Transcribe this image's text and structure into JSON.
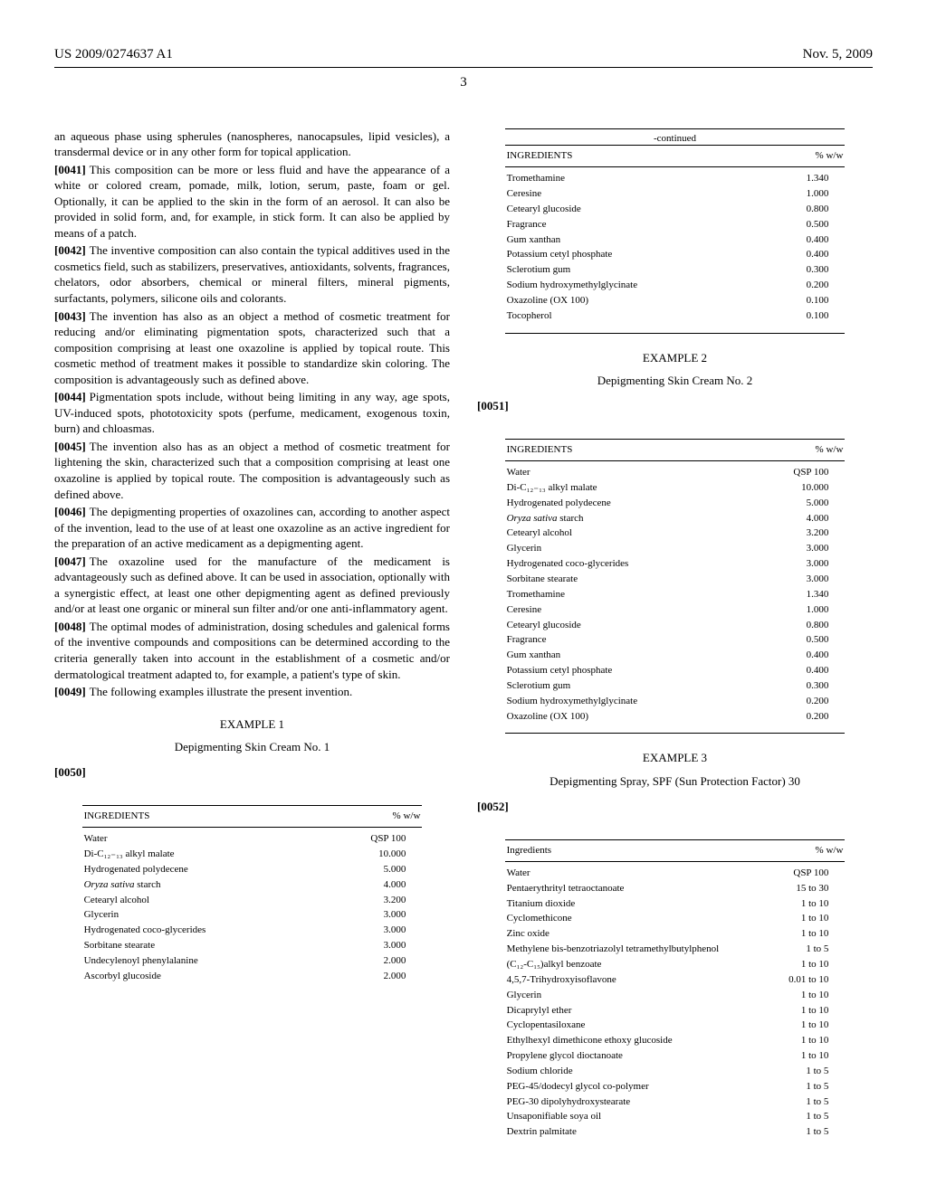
{
  "header": {
    "patent_number": "US 2009/0274637 A1",
    "date": "Nov. 5, 2009"
  },
  "page_number": "3",
  "left_column": {
    "para_intro": "an aqueous phase using spherules (nanospheres, nanocapsules, lipid vesicles), a transdermal device or in any other form for topical application.",
    "paragraphs": [
      {
        "num": "[0041]",
        "text": "This composition can be more or less fluid and have the appearance of a white or colored cream, pomade, milk, lotion, serum, paste, foam or gel. Optionally, it can be applied to the skin in the form of an aerosol. It can also be provided in solid form, and, for example, in stick form. It can also be applied by means of a patch."
      },
      {
        "num": "[0042]",
        "text": "The inventive composition can also contain the typical additives used in the cosmetics field, such as stabilizers, preservatives, antioxidants, solvents, fragrances, chelators, odor absorbers, chemical or mineral filters, mineral pigments, surfactants, polymers, silicone oils and colorants."
      },
      {
        "num": "[0043]",
        "text": "The invention has also as an object a method of cosmetic treatment for reducing and/or eliminating pigmentation spots, characterized such that a composition comprising at least one oxazoline is applied by topical route. This cosmetic method of treatment makes it possible to standardize skin coloring. The composition is advantageously such as defined above."
      },
      {
        "num": "[0044]",
        "text": "Pigmentation spots include, without being limiting in any way, age spots, UV-induced spots, phototoxicity spots (perfume, medicament, exogenous toxin, burn) and chloasmas."
      },
      {
        "num": "[0045]",
        "text": "The invention also has as an object a method of cosmetic treatment for lightening the skin, characterized such that a composition comprising at least one oxazoline is applied by topical route. The composition is advantageously such as defined above."
      },
      {
        "num": "[0046]",
        "text": "The depigmenting properties of oxazolines can, according to another aspect of the invention, lead to the use of at least one oxazoline as an active ingredient for the preparation of an active medicament as a depigmenting agent."
      },
      {
        "num": "[0047]",
        "text": "The oxazoline used for the manufacture of the medicament is advantageously such as defined above. It can be used in association, optionally with a synergistic effect, at least one other depigmenting agent as defined previously and/or at least one organic or mineral sun filter and/or one anti-inflammatory agent."
      },
      {
        "num": "[0048]",
        "text": "The optimal modes of administration, dosing schedules and galenical forms of the inventive compounds and compositions can be determined according to the criteria generally taken into account in the establishment of a cosmetic and/or dermatological treatment adapted to, for example, a patient's type of skin."
      },
      {
        "num": "[0049]",
        "text": "The following examples illustrate the present invention."
      }
    ],
    "example1": {
      "heading": "EXAMPLE 1",
      "subheading": "Depigmenting Skin Cream No. 1",
      "para_num": "[0050]",
      "headers": [
        "INGREDIENTS",
        "% w/w"
      ],
      "rows": [
        [
          "Water",
          "QSP 100"
        ],
        [
          "Di-C₁₂₋₁₃ alkyl malate",
          "10.000"
        ],
        [
          "Hydrogenated polydecene",
          "5.000"
        ],
        [
          "Oryza sativa starch",
          "4.000"
        ],
        [
          "Cetearyl alcohol",
          "3.200"
        ],
        [
          "Glycerin",
          "3.000"
        ],
        [
          "Hydrogenated coco-glycerides",
          "3.000"
        ],
        [
          "Sorbitane stearate",
          "3.000"
        ],
        [
          "Undecylenoyl phenylalanine",
          "2.000"
        ],
        [
          "Ascorbyl glucoside",
          "2.000"
        ]
      ]
    }
  },
  "right_column": {
    "continued_label": "-continued",
    "continued_headers": [
      "INGREDIENTS",
      "% w/w"
    ],
    "continued_rows": [
      [
        "Tromethamine",
        "1.340"
      ],
      [
        "Ceresine",
        "1.000"
      ],
      [
        "Cetearyl glucoside",
        "0.800"
      ],
      [
        "Fragrance",
        "0.500"
      ],
      [
        "Gum xanthan",
        "0.400"
      ],
      [
        "Potassium cetyl phosphate",
        "0.400"
      ],
      [
        "Sclerotium gum",
        "0.300"
      ],
      [
        "Sodium hydroxymethylglycinate",
        "0.200"
      ],
      [
        "Oxazoline (OX 100)",
        "0.100"
      ],
      [
        "Tocopherol",
        "0.100"
      ]
    ],
    "example2": {
      "heading": "EXAMPLE 2",
      "subheading": "Depigmenting Skin Cream No. 2",
      "para_num": "[0051]",
      "headers": [
        "INGREDIENTS",
        "% w/w"
      ],
      "rows": [
        [
          "Water",
          "QSP 100"
        ],
        [
          "Di-C₁₂₋₁₃ alkyl malate",
          "10.000"
        ],
        [
          "Hydrogenated polydecene",
          "5.000"
        ],
        [
          "Oryza sativa starch",
          "4.000"
        ],
        [
          "Cetearyl alcohol",
          "3.200"
        ],
        [
          "Glycerin",
          "3.000"
        ],
        [
          "Hydrogenated coco-glycerides",
          "3.000"
        ],
        [
          "Sorbitane stearate",
          "3.000"
        ],
        [
          "Tromethamine",
          "1.340"
        ],
        [
          "Ceresine",
          "1.000"
        ],
        [
          "Cetearyl glucoside",
          "0.800"
        ],
        [
          "Fragrance",
          "0.500"
        ],
        [
          "Gum xanthan",
          "0.400"
        ],
        [
          "Potassium cetyl phosphate",
          "0.400"
        ],
        [
          "Sclerotium gum",
          "0.300"
        ],
        [
          "Sodium hydroxymethylglycinate",
          "0.200"
        ],
        [
          "Oxazoline (OX 100)",
          "0.200"
        ]
      ]
    },
    "example3": {
      "heading": "EXAMPLE 3",
      "subheading": "Depigmenting Spray, SPF (Sun Protection Factor) 30",
      "para_num": "[0052]",
      "headers": [
        "Ingredients",
        "% w/w"
      ],
      "rows": [
        [
          "Water",
          "QSP 100"
        ],
        [
          "Pentaerythrityl tetraoctanoate",
          "15 to 30"
        ],
        [
          "Titanium dioxide",
          "1 to 10"
        ],
        [
          "Cyclomethicone",
          "1 to 10"
        ],
        [
          "Zinc oxide",
          "1 to 10"
        ],
        [
          "Methylene bis-benzotriazolyl tetramethylbutylphenol",
          "1 to 5"
        ],
        [
          "(C₁₂-C₁₅)alkyl benzoate",
          "1 to 10"
        ],
        [
          "4,5,7-Trihydroxyisoflavone",
          "0.01 to 10"
        ],
        [
          "Glycerin",
          "1 to 10"
        ],
        [
          "Dicaprylyl ether",
          "1 to 10"
        ],
        [
          "Cyclopentasiloxane",
          "1 to 10"
        ],
        [
          "Ethylhexyl dimethicone ethoxy glucoside",
          "1 to 10"
        ],
        [
          "Propylene glycol dioctanoate",
          "1 to 10"
        ],
        [
          "Sodium chloride",
          "1 to 5"
        ],
        [
          "PEG-45/dodecyl glycol co-polymer",
          "1 to 5"
        ],
        [
          "PEG-30 dipolyhydroxystearate",
          "1 to 5"
        ],
        [
          "Unsaponifiable soya oil",
          "1 to 5"
        ],
        [
          "Dextrin palmitate",
          "1 to 5"
        ]
      ]
    }
  }
}
